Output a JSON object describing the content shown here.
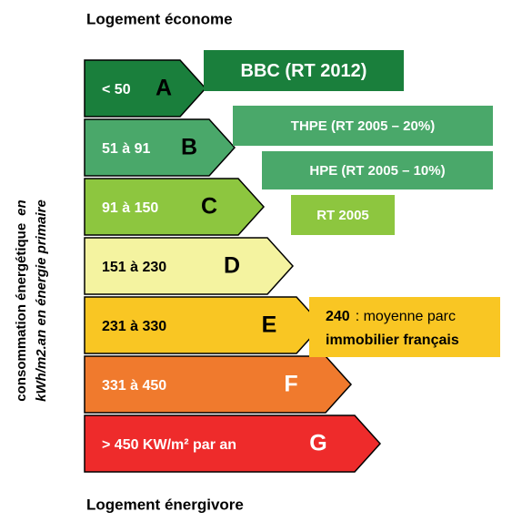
{
  "header": "Logement économe",
  "footer": "Logement énergivore",
  "axis_label": {
    "line1_bold": "consommation énergétique",
    "line1_italic": "en",
    "line2": "kWh/m2.an en énergie primaire"
  },
  "classes": [
    {
      "range": "< 50",
      "letter": "A"
    },
    {
      "range": "51 à 91",
      "letter": "B"
    },
    {
      "range": "91 à 150",
      "letter": "C"
    },
    {
      "range": "151 à 230",
      "letter": "D"
    },
    {
      "range": "231 à 330",
      "letter": "E"
    },
    {
      "range": "331 à 450",
      "letter": "F"
    },
    {
      "range": "> 450 KW/m² par an",
      "letter": "G"
    }
  ],
  "badges": [
    {
      "label": "BBC (RT 2012)"
    },
    {
      "label": "THPE (RT 2005 – 20%)"
    },
    {
      "label": "HPE (RT 2005 – 10%)"
    },
    {
      "label": "RT 2005"
    }
  ],
  "note": {
    "value": "240",
    "text": ": moyenne parc",
    "text2": "immobilier français"
  }
}
